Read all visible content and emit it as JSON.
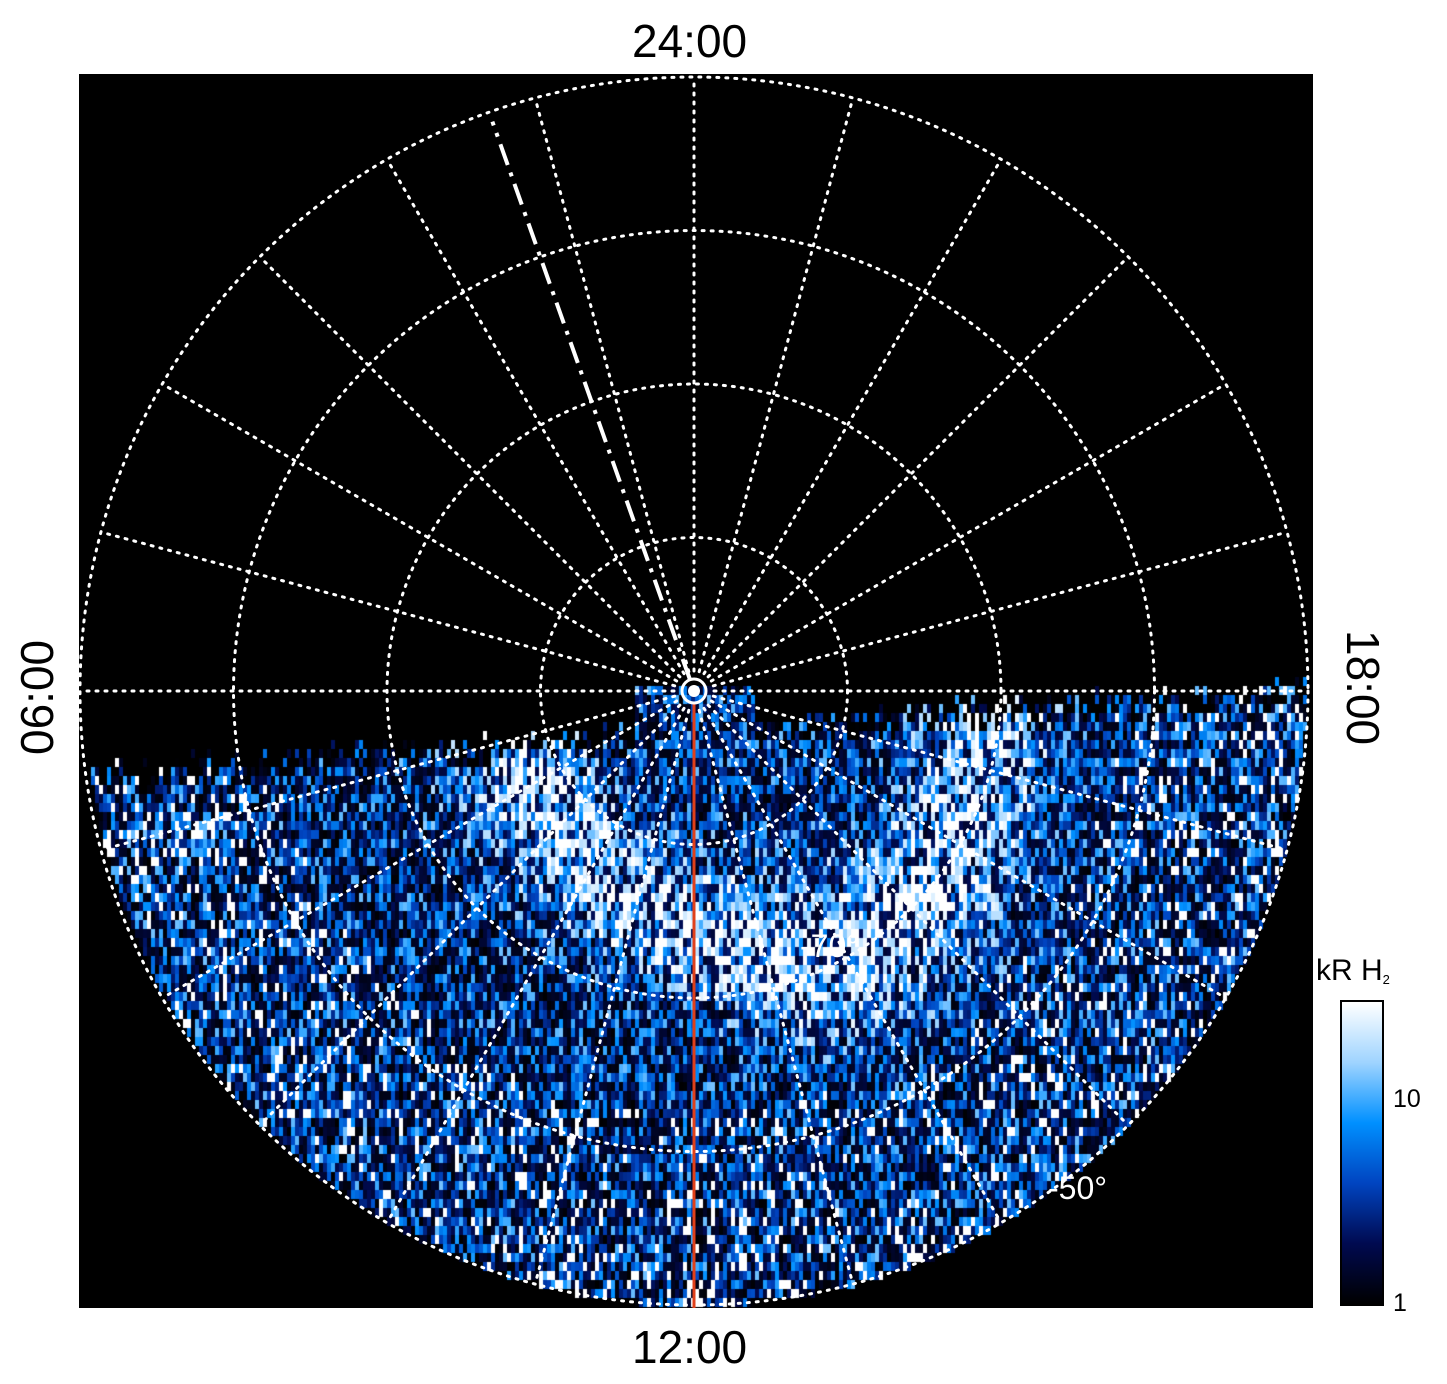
{
  "chart_data": {
    "type": "heatmap",
    "projection": "polar (south pole view, local time vs latitude)",
    "local_time_labels": {
      "top": "24:00",
      "bottom": "12:00",
      "left": "06:00",
      "right": "18:00"
    },
    "latitude_circles": [
      -80,
      -70,
      -60,
      -50
    ],
    "latitude_labels": [
      "-70°",
      "-50°"
    ],
    "meridian_step_hours": 1,
    "colorbar": {
      "title": "kR H",
      "title_sub": "2",
      "scale": "log",
      "range": [
        1,
        30
      ],
      "ticks": [
        {
          "value": 1,
          "label": "1"
        },
        {
          "value": 10,
          "label": "10"
        }
      ],
      "colors": [
        "#000000",
        "#000a50",
        "#0044c0",
        "#0090ff",
        "#9fd4ff",
        "#ffffff"
      ]
    },
    "reference_lines": [
      {
        "name": "noon meridian",
        "local_time_hours": 12,
        "color": "#e0401a",
        "style": "solid"
      },
      {
        "name": "dash-dot meridian",
        "local_time_hours": 1.3,
        "color": "#ffffff",
        "style": "dash-dot"
      }
    ]
  }
}
